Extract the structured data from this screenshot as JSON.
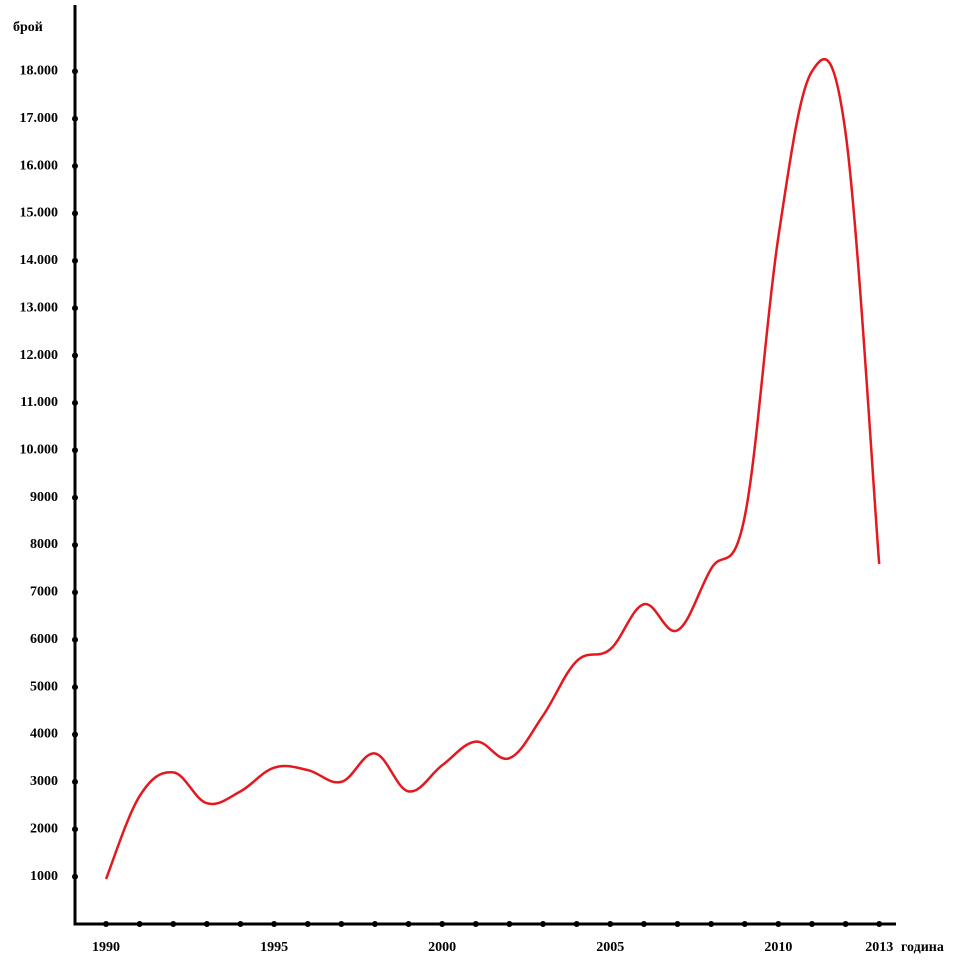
{
  "chart_data": {
    "type": "line",
    "y_label": "брой",
    "x_label": "година",
    "x": [
      1990,
      1991,
      1992,
      1993,
      1994,
      1995,
      1996,
      1997,
      1998,
      1999,
      2000,
      2001,
      2002,
      2003,
      2004,
      2005,
      2006,
      2007,
      2008,
      2009,
      2010,
      2011,
      2012,
      2013
    ],
    "series": [
      {
        "color": "#e3191f",
        "values": [
          950,
          2700,
          3200,
          2550,
          2800,
          3300,
          3250,
          3000,
          3600,
          2800,
          3350,
          3850,
          3500,
          4400,
          5550,
          5800,
          6750,
          6200,
          7500,
          8600,
          14500,
          18000,
          16700,
          7600
        ]
      }
    ],
    "xlim": [
      1989,
      2013.5
    ],
    "xticks": [
      1990,
      1995,
      2000,
      2005,
      2010,
      2013
    ],
    "ylim": [
      0,
      19400
    ],
    "yticks": [
      1000,
      2000,
      3000,
      4000,
      5000,
      6000,
      7000,
      8000,
      9000,
      {
        "value": 10000,
        "label": "10.000"
      },
      {
        "value": 11000,
        "label": "11.000"
      },
      {
        "value": 12000,
        "label": "12.000"
      },
      {
        "value": 13000,
        "label": "13.000"
      },
      {
        "value": 14000,
        "label": "14.000"
      },
      {
        "value": 15000,
        "label": "15.000"
      },
      {
        "value": 16000,
        "label": "16.000"
      },
      {
        "value": 17000,
        "label": "17.000"
      },
      {
        "value": 18000,
        "label": "18.000"
      }
    ],
    "grid": false
  }
}
